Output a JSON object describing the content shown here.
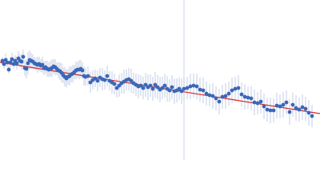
{
  "chart_data": {
    "type": "scatter",
    "xlim": [
      0,
      400
    ],
    "ylim": [
      0,
      200
    ],
    "marker_color": "#3b67b8",
    "error_color": "#b4c2e0",
    "vline": {
      "x": 230,
      "color": "#c9d5ec"
    },
    "fit": {
      "x": [
        0,
        400
      ],
      "values": [
        122,
        58
      ],
      "color": "#d62728"
    },
    "x": [
      3,
      5,
      7,
      9,
      11,
      13,
      15,
      17,
      19,
      21,
      23,
      25,
      27,
      29,
      31,
      33,
      35,
      37,
      39,
      41,
      43,
      45,
      47,
      49,
      51,
      53,
      55,
      57,
      59,
      61,
      63,
      65,
      67,
      69,
      71,
      73,
      75,
      77,
      79,
      81,
      83,
      85,
      87,
      89,
      91,
      93,
      95,
      97,
      99,
      101,
      103,
      105,
      107,
      110,
      113,
      116,
      119,
      122,
      125,
      128,
      131,
      134,
      137,
      140,
      143,
      146,
      149,
      152,
      155,
      158,
      161,
      164,
      167,
      170,
      173,
      176,
      179,
      182,
      185,
      188,
      191,
      194,
      197,
      200,
      203,
      206,
      209,
      212,
      215,
      218,
      221,
      224,
      227,
      230,
      234,
      238,
      242,
      246,
      250,
      254,
      258,
      262,
      266,
      270,
      274,
      278,
      282,
      286,
      290,
      294,
      298,
      302,
      306,
      310,
      314,
      318,
      322,
      326,
      330,
      334,
      338,
      342,
      346,
      350,
      354,
      358,
      362,
      366,
      370,
      374,
      378,
      382,
      386,
      390
    ],
    "values": [
      124,
      120,
      125,
      122,
      113,
      122,
      126,
      120,
      124,
      121,
      127,
      124,
      123,
      129,
      115,
      114,
      121,
      125,
      124,
      123,
      121,
      120,
      119,
      120,
      118,
      119,
      115,
      116,
      114,
      113,
      114,
      115,
      117,
      116,
      114,
      112,
      111,
      109,
      106,
      104,
      102,
      104,
      105,
      107,
      108,
      110,
      112,
      113,
      113,
      114,
      112,
      105,
      104,
      105,
      97,
      100,
      102,
      99,
      103,
      101,
      100,
      105,
      99,
      97,
      95,
      90,
      93,
      96,
      98,
      100,
      101,
      99,
      96,
      94,
      92,
      93,
      90,
      94,
      91,
      93,
      89,
      94,
      91,
      88,
      90,
      93,
      89,
      87,
      91,
      86,
      87,
      89,
      86,
      89,
      90,
      92,
      93,
      92,
      88,
      87,
      83,
      81,
      80,
      77,
      73,
      79,
      80,
      83,
      87,
      89,
      90,
      82,
      79,
      78,
      77,
      72,
      71,
      73,
      67,
      63,
      62,
      62,
      68,
      67,
      69,
      72,
      60,
      69,
      65,
      63,
      66,
      64,
      59,
      55
    ],
    "errors": [
      5,
      6,
      8,
      6,
      5,
      7,
      8,
      6,
      7,
      8,
      9,
      8,
      10,
      9,
      10,
      12,
      14,
      12,
      10,
      9,
      8,
      8,
      10,
      9,
      8,
      10,
      9,
      8,
      10,
      9,
      10,
      11,
      9,
      10,
      8,
      10,
      11,
      12,
      10,
      12,
      11,
      10,
      12,
      10,
      11,
      9,
      11,
      10,
      12,
      11,
      10,
      12,
      11,
      12,
      13,
      12,
      11,
      13,
      12,
      14,
      12,
      13,
      12,
      14,
      13,
      12,
      14,
      13,
      15,
      13,
      14,
      15,
      13,
      14,
      15,
      13,
      14,
      15,
      16,
      14,
      15,
      16,
      15,
      16,
      14,
      15,
      16,
      14,
      15,
      16,
      15,
      14,
      16,
      15,
      14,
      16,
      15,
      16,
      15,
      16,
      15,
      14,
      16,
      15,
      16,
      15,
      16,
      15,
      16,
      15,
      16,
      15,
      16,
      14,
      15,
      16,
      14,
      15,
      16,
      15,
      16,
      15,
      16,
      15,
      16,
      15,
      16,
      15,
      16,
      15,
      16,
      15,
      16,
      14
    ]
  }
}
